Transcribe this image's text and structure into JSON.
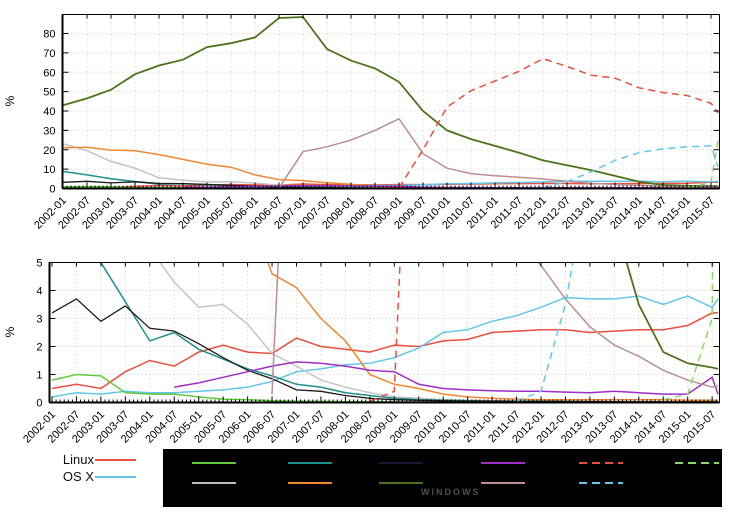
{
  "legend": {
    "linux_label": "Linux",
    "osx_label": "OS X",
    "linux_color": "#ea4e40",
    "osx_color": "#63c6e8",
    "windows_box": {
      "bg": "#000000",
      "label": "WINDOWS",
      "label_color": "#4f4f4f",
      "note": "entry labels inside the black box are not legible (dark text on black); only colored line swatches and the word WINDOWS are visible",
      "swatches": [
        {
          "row": 1,
          "col": 1,
          "color": "#62c93e",
          "style": "solid"
        },
        {
          "row": 2,
          "col": 1,
          "color": "#bdbdbd",
          "style": "solid"
        },
        {
          "row": 1,
          "col": 2,
          "color": "#1e8f8c",
          "style": "solid"
        },
        {
          "row": 2,
          "col": 2,
          "color": "#ee8833",
          "style": "solid"
        },
        {
          "row": 1,
          "col": 3,
          "color": "#151a33",
          "style": "solid"
        },
        {
          "row": 2,
          "col": 3,
          "color": "#4e7119",
          "style": "solid"
        },
        {
          "row": 1,
          "col": 4,
          "color": "#9d2fc4",
          "style": "solid"
        },
        {
          "row": 2,
          "col": 4,
          "color": "#bc8f8f",
          "style": "solid"
        },
        {
          "row": 1,
          "col": 5,
          "color": "#ea4e40",
          "style": "dashed"
        },
        {
          "row": 2,
          "col": 5,
          "color": "#63c6e8",
          "style": "dashed"
        },
        {
          "row": 1,
          "col": 6,
          "color": "#8bd964",
          "style": "dashed"
        }
      ]
    }
  },
  "chart_data": {
    "type": "line",
    "title": "",
    "xlabel": "",
    "x_tick_labels": [
      "2002-01",
      "2002-07",
      "2003-01",
      "2003-07",
      "2004-01",
      "2004-07",
      "2005-01",
      "2005-07",
      "2006-01",
      "2006-07",
      "2007-01",
      "2007-07",
      "2008-01",
      "2008-07",
      "2009-01",
      "2009-07",
      "2010-01",
      "2010-07",
      "2011-01",
      "2011-07",
      "2012-01",
      "2012-07",
      "2013-01",
      "2013-07",
      "2014-01",
      "2014-07",
      "2015-01",
      "2015-07"
    ],
    "sampling_note": "values read from pixels at 6-month intervals; 'end' is the value at the right edge of the plot (~2015-09)",
    "charts": [
      {
        "id": "top",
        "ylabel": "%",
        "ylim": [
          0,
          90
        ],
        "yticks": [
          0,
          10,
          20,
          30,
          40,
          50,
          60,
          70,
          80
        ],
        "grid": "dotted"
      },
      {
        "id": "bottom",
        "ylabel": "%",
        "ylim": [
          0,
          5
        ],
        "yticks": [
          0,
          1,
          2,
          3,
          4,
          5
        ],
        "grid": "dotted"
      }
    ],
    "series": [
      {
        "name": "linux",
        "color": "#ea4e40",
        "style": "solid",
        "values": [
          0.5,
          0.65,
          0.5,
          1.1,
          1.5,
          1.3,
          1.8,
          2.05,
          1.8,
          1.75,
          2.3,
          2.0,
          1.9,
          1.8,
          2.05,
          2.0,
          2.2,
          2.25,
          2.5,
          2.55,
          2.6,
          2.6,
          2.5,
          2.55,
          2.6,
          2.6,
          2.75,
          3.2
        ],
        "end": 3.2
      },
      {
        "name": "os-x",
        "color": "#63c6e8",
        "style": "solid",
        "values": [
          0.2,
          0.35,
          0.3,
          0.4,
          0.35,
          0.35,
          0.4,
          0.45,
          0.55,
          0.75,
          1.1,
          1.2,
          1.35,
          1.4,
          1.6,
          1.95,
          2.5,
          2.6,
          2.9,
          3.1,
          3.4,
          3.75,
          3.7,
          3.7,
          3.8,
          3.5,
          3.8,
          3.4
        ],
        "end": 3.7
      },
      {
        "name": "green-solid",
        "color": "#62c93e",
        "style": "solid",
        "values": [
          0.8,
          1.0,
          0.95,
          0.35,
          0.3,
          0.3,
          0.2,
          0.12,
          0.1,
          0.06,
          0.05,
          0.04,
          0.03,
          0.03,
          0.02,
          0.02,
          0.02,
          0.02,
          0.02,
          0.02,
          0.02,
          0.02,
          0.02,
          0.02,
          0.02,
          0.02,
          0.02,
          0.02
        ],
        "end": 0.02
      },
      {
        "name": "gray-solid",
        "color": "#c4c4c4",
        "style": "solid",
        "values": [
          23,
          19.5,
          14,
          10.5,
          5.5,
          4.3,
          3.4,
          3.5,
          2.8,
          1.75,
          1.3,
          0.8,
          0.55,
          0.35,
          0.2,
          0.15,
          0.1,
          0.08,
          0.06,
          0.05,
          0.05,
          0.04,
          0.04,
          0.03,
          0.03,
          0.03,
          0.02,
          0.02
        ],
        "end": 0.02
      },
      {
        "name": "teal-solid",
        "color": "#1e8f8c",
        "style": "solid",
        "values": [
          8.8,
          7.0,
          5.0,
          3.6,
          2.2,
          2.5,
          1.9,
          1.55,
          1.2,
          0.95,
          0.65,
          0.55,
          0.35,
          0.25,
          0.15,
          0.1,
          0.08,
          0.06,
          0.05,
          0.05,
          0.04,
          0.04,
          0.03,
          0.03,
          0.03,
          0.02,
          0.02,
          0.02
        ],
        "end": 0.02
      },
      {
        "name": "black-solid",
        "color": "#1a1a1a",
        "style": "solid",
        "values": [
          3.2,
          3.7,
          2.9,
          3.45,
          2.65,
          2.55,
          2.1,
          1.6,
          1.15,
          0.85,
          0.45,
          0.4,
          0.25,
          0.15,
          0.1,
          0.08,
          0.06,
          0.05,
          0.05,
          0.04,
          0.04,
          0.03,
          0.03,
          0.03,
          0.02,
          0.02,
          0.02,
          0.02
        ],
        "end": 0.02
      },
      {
        "name": "orange-solid",
        "color": "#ee8833",
        "style": "solid",
        "values": [
          21,
          21.3,
          19.8,
          19.5,
          17.5,
          15,
          12.5,
          11,
          7,
          4.6,
          4.1,
          3.0,
          2.2,
          1.0,
          0.65,
          0.5,
          0.3,
          0.2,
          0.15,
          0.12,
          0.1,
          0.1,
          0.1,
          0.1,
          0.1,
          0.1,
          0.08,
          0.08
        ],
        "end": 0.08
      },
      {
        "name": "dark-green-solid",
        "color": "#4e7119",
        "style": "solid",
        "values": [
          43,
          46.5,
          51,
          59,
          63.5,
          66.5,
          73,
          75,
          78,
          88,
          88.5,
          72,
          66,
          62,
          55,
          40,
          30,
          25.5,
          22,
          18.5,
          14.5,
          12,
          9.5,
          6.5,
          3.5,
          1.8,
          1.4,
          1.25
        ],
        "end": 1.2
      },
      {
        "name": "purple-solid",
        "color": "#9d2fc4",
        "style": "solid",
        "values": [
          null,
          null,
          null,
          null,
          null,
          0.55,
          0.7,
          0.9,
          1.1,
          1.3,
          1.45,
          1.4,
          1.3,
          1.15,
          1.1,
          0.65,
          0.5,
          0.45,
          0.42,
          0.4,
          0.4,
          0.37,
          0.35,
          0.4,
          0.35,
          0.3,
          0.3,
          0.9
        ],
        "end": 0.3
      },
      {
        "name": "rosy-brown-solid",
        "color": "#bc8f8f",
        "style": "solid",
        "values": [
          null,
          null,
          null,
          null,
          null,
          null,
          null,
          null,
          null,
          0.3,
          19,
          21.5,
          25,
          30,
          36,
          18,
          10.5,
          7.7,
          6.6,
          5.8,
          4.9,
          3.7,
          2.7,
          2.05,
          1.65,
          1.15,
          0.8,
          0.55
        ],
        "end": 0.6
      },
      {
        "name": "red-dashed",
        "color": "#ea4e40",
        "style": "dashed",
        "values": [
          null,
          null,
          null,
          null,
          null,
          null,
          null,
          null,
          null,
          null,
          null,
          null,
          null,
          0.05,
          0.4,
          20,
          42,
          50.5,
          55.5,
          60.5,
          67,
          63,
          58.5,
          57,
          52,
          49.5,
          48,
          44
        ],
        "end": 39
      },
      {
        "name": "cyan-dashed",
        "color": "#63c6e8",
        "style": "dashed",
        "values": [
          null,
          null,
          null,
          null,
          null,
          null,
          null,
          null,
          null,
          null,
          null,
          null,
          null,
          null,
          null,
          null,
          null,
          null,
          null,
          0.05,
          0.4,
          3.5,
          8.5,
          14.5,
          18.5,
          20.5,
          21.5,
          22
        ],
        "end": 11
      },
      {
        "name": "green-dashed",
        "color": "#8bd964",
        "style": "dashed",
        "values": [
          null,
          null,
          null,
          null,
          null,
          null,
          null,
          null,
          null,
          null,
          null,
          null,
          null,
          null,
          null,
          null,
          null,
          null,
          null,
          null,
          null,
          null,
          null,
          null,
          null,
          0.1,
          0.3,
          3
        ],
        "end": 25
      }
    ]
  }
}
